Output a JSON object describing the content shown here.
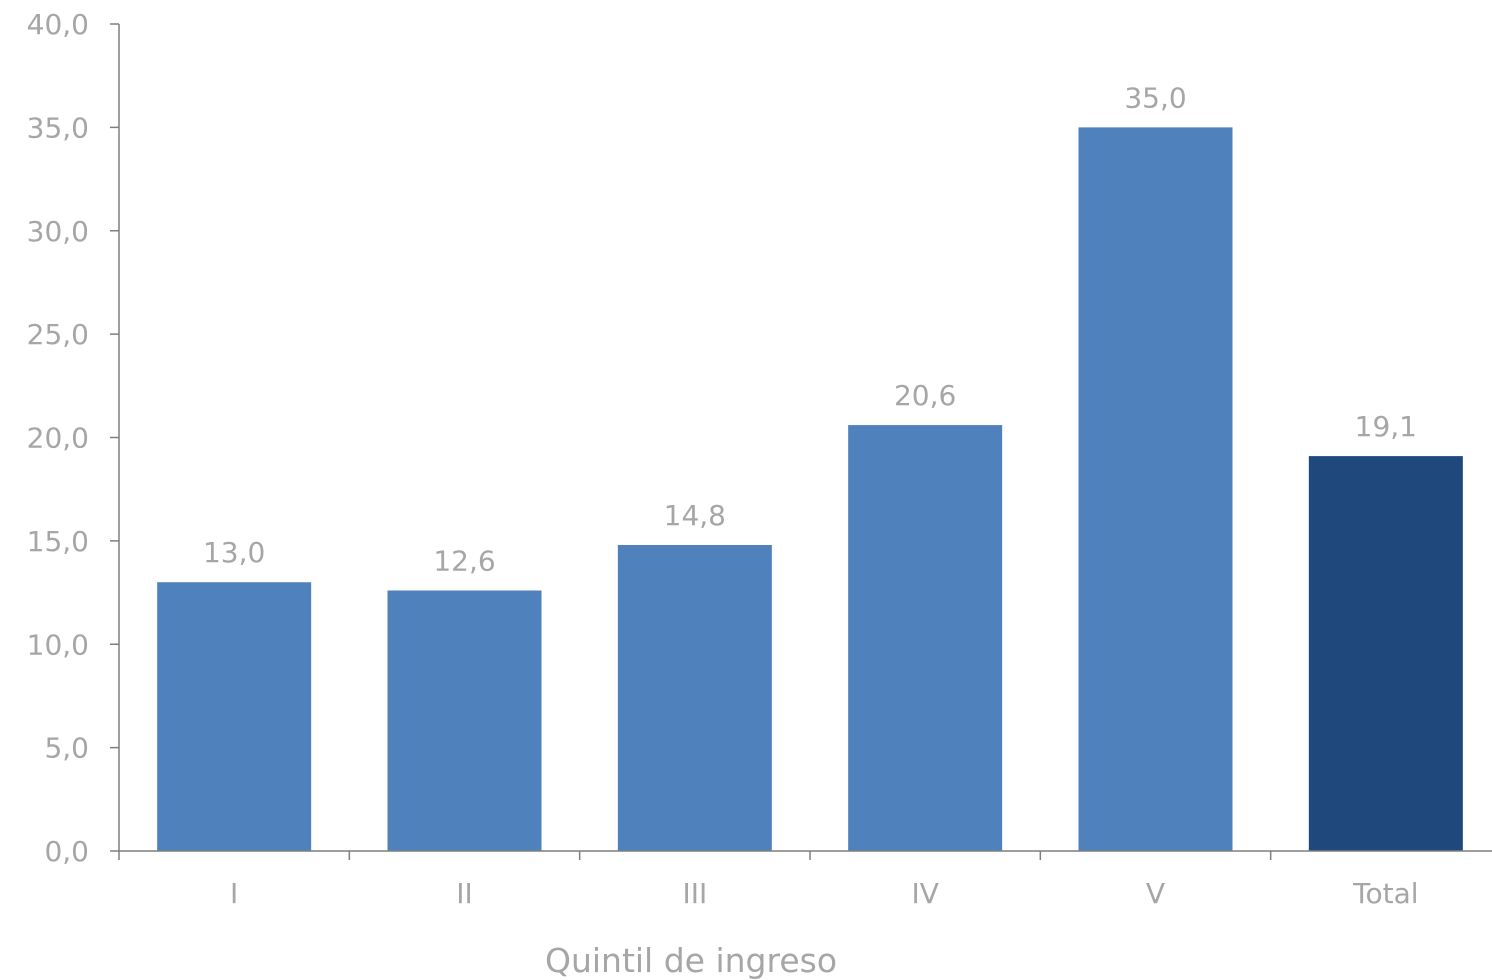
{
  "chart_data": {
    "type": "bar",
    "categories": [
      "I",
      "II",
      "III",
      "IV",
      "V",
      "Total"
    ],
    "values": [
      13.0,
      12.6,
      14.8,
      20.6,
      35.0,
      19.1
    ],
    "value_labels": [
      "13,0",
      "12,6",
      "14,8",
      "20,6",
      "35,0",
      "19,1"
    ],
    "xlabel": "Quintil de ingreso",
    "ylabel": "",
    "ylim": [
      0,
      40
    ],
    "yticks": [
      0,
      5,
      10,
      15,
      20,
      25,
      30,
      35,
      40
    ],
    "ytick_labels": [
      "0,0",
      "5,0",
      "10,0",
      "15,0",
      "20,0",
      "25,0",
      "30,0",
      "35,0",
      "40,0"
    ],
    "bar_colors": [
      "#4f81bd",
      "#4f81bd",
      "#4f81bd",
      "#4f81bd",
      "#4f81bd",
      "#1f497d"
    ],
    "grid": false,
    "legend": "none"
  }
}
